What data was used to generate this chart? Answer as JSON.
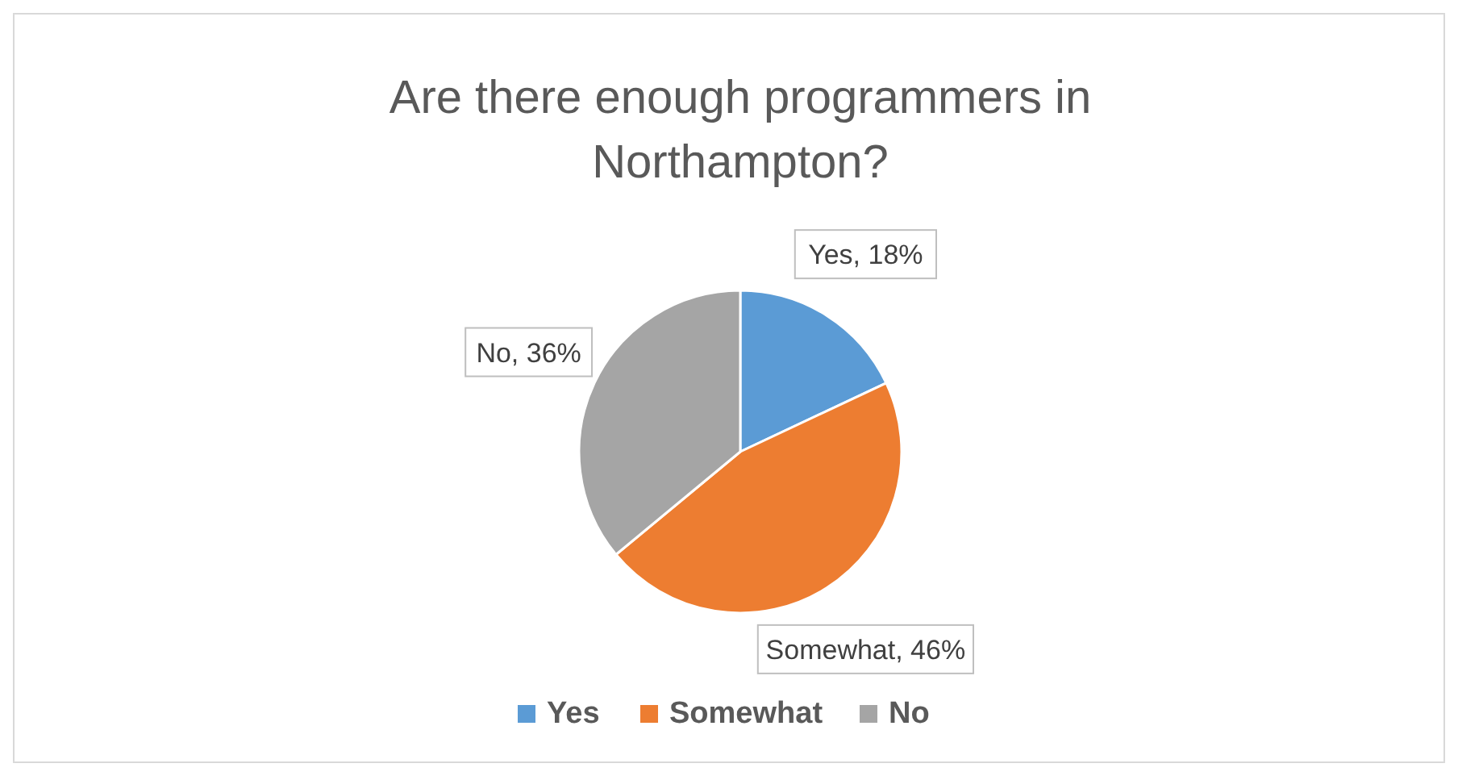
{
  "chart_data": {
    "type": "pie",
    "title": "Are there enough programmers in Northampton?",
    "categories": [
      "Yes",
      "Somewhat",
      "No"
    ],
    "values": [
      18,
      46,
      36
    ],
    "colors": [
      "#5b9bd5",
      "#ed7d31",
      "#a5a5a5"
    ],
    "value_labels": [
      "Yes, 18%",
      "Somewhat, 46%",
      "No, 36%"
    ],
    "legend": "bottom"
  }
}
